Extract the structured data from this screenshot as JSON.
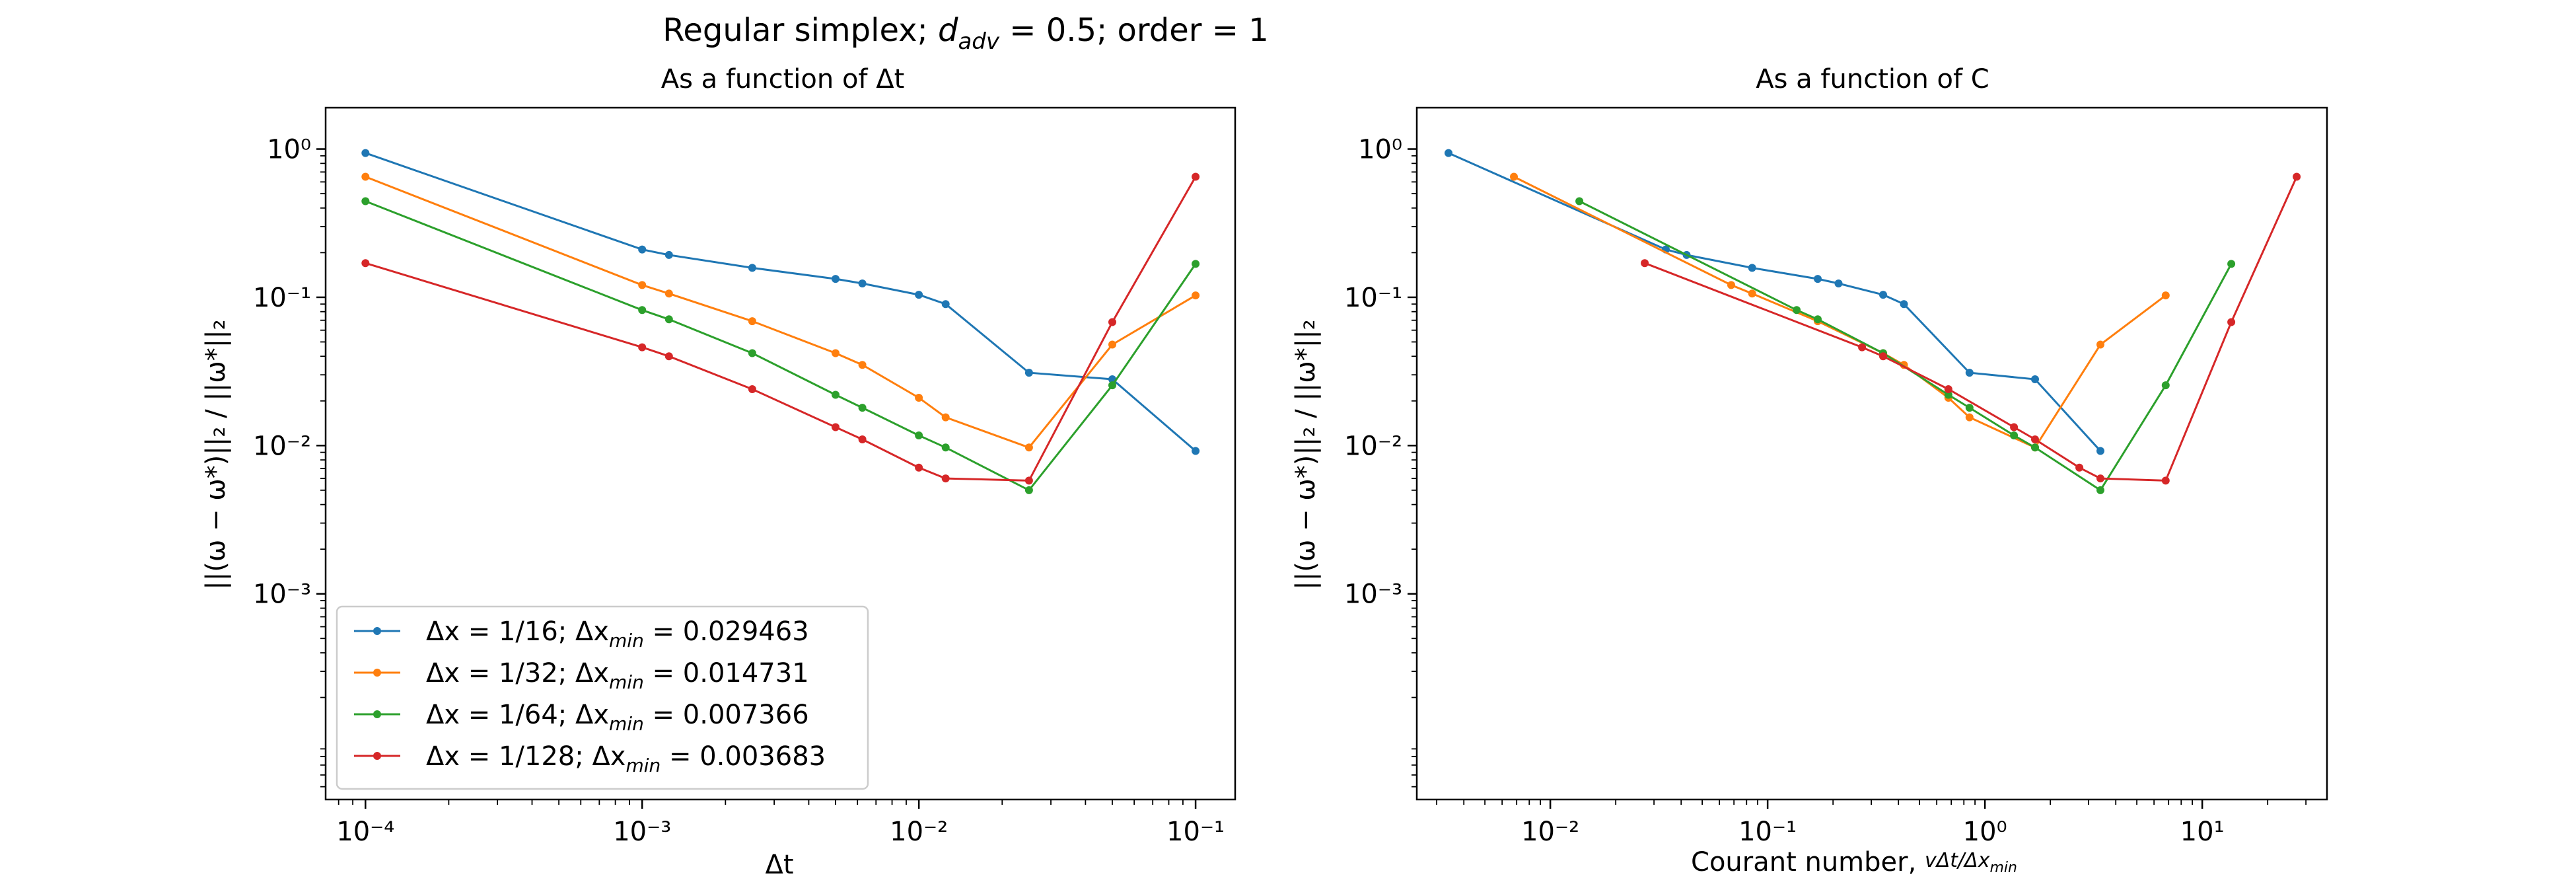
{
  "figure_title": {
    "prefix": "Regular simplex; ",
    "d_symbol": "d",
    "d_subscript": "adv",
    "d_value": " = 0.5; order = 1"
  },
  "legend_entries": [
    {
      "dx": "Δx = 1/16; Δx",
      "sub": "min",
      "rest": " = 0.029463"
    },
    {
      "dx": "Δx = 1/32; Δx",
      "sub": "min",
      "rest": " = 0.014731"
    },
    {
      "dx": "Δx = 1/64; Δx",
      "sub": "min",
      "rest": " = 0.007366"
    },
    {
      "dx": "Δx = 1/128; Δx",
      "sub": "min",
      "rest": " = 0.003683"
    }
  ],
  "chart_data": [
    {
      "type": "line",
      "title": "As a function of Δt",
      "xlabel": "Δt",
      "ylabel": "||(ω − ω*)||₂ / ||ω*||₂",
      "xscale": "log",
      "yscale": "log",
      "xlim": [
        7.18e-05,
        0.139
      ],
      "ylim": [
        4.1e-05,
        1.9
      ],
      "x_ticks": [
        {
          "value": 0.0001,
          "label": "10⁻⁴"
        },
        {
          "value": 0.001,
          "label": "10⁻³"
        },
        {
          "value": 0.01,
          "label": "10⁻²"
        },
        {
          "value": 0.1,
          "label": "10⁻¹"
        }
      ],
      "y_ticks": [
        {
          "value": 0.001,
          "label": "10⁻³"
        },
        {
          "value": 0.01,
          "label": "10⁻²"
        },
        {
          "value": 0.1,
          "label": "10⁻¹"
        },
        {
          "value": 1,
          "label": "10⁰"
        }
      ],
      "legend_position": "lower-left",
      "grid": false,
      "series": [
        {
          "name": "Δx = 1/16; Δx_min = 0.029463",
          "color": "#1f77b4",
          "x": [
            0.0001,
            0.001,
            0.00125,
            0.0025,
            0.005,
            0.00625,
            0.01,
            0.0125,
            0.025,
            0.05,
            0.1
          ],
          "y": [
            0.94,
            0.21,
            0.193,
            0.158,
            0.133,
            0.124,
            0.104,
            0.09,
            0.031,
            0.028,
            0.0092
          ]
        },
        {
          "name": "Δx = 1/32; Δx_min = 0.014731",
          "color": "#ff7f0e",
          "x": [
            0.0001,
            0.001,
            0.00125,
            0.0025,
            0.005,
            0.00625,
            0.01,
            0.0125,
            0.025,
            0.05,
            0.1
          ],
          "y": [
            0.65,
            0.121,
            0.106,
            0.069,
            0.042,
            0.035,
            0.021,
            0.0155,
            0.0097,
            0.048,
            0.103
          ]
        },
        {
          "name": "Δx = 1/64; Δx_min = 0.007366",
          "color": "#2ca02c",
          "x": [
            0.0001,
            0.001,
            0.00125,
            0.0025,
            0.005,
            0.00625,
            0.01,
            0.0125,
            0.025,
            0.05,
            0.1
          ],
          "y": [
            0.445,
            0.082,
            0.071,
            0.042,
            0.022,
            0.018,
            0.0117,
            0.0097,
            0.005,
            0.0255,
            0.168
          ]
        },
        {
          "name": "Δx = 1/128; Δx_min = 0.003683",
          "color": "#d62728",
          "x": [
            0.0001,
            0.001,
            0.00125,
            0.0025,
            0.005,
            0.00625,
            0.01,
            0.0125,
            0.025,
            0.05,
            0.1
          ],
          "y": [
            0.17,
            0.046,
            0.04,
            0.024,
            0.0133,
            0.011,
            0.0071,
            0.006,
            0.0058,
            0.068,
            0.65
          ]
        }
      ]
    },
    {
      "type": "line",
      "title": "As a function of C",
      "xlabel": "Courant number, vΔt/Δx_min",
      "ylabel": "||(ω − ω*)||₂ / ||ω*||₂",
      "xscale": "log",
      "yscale": "log",
      "xlim": [
        0.00243,
        37.5
      ],
      "ylim": [
        4.1e-05,
        1.9
      ],
      "x_ticks": [
        {
          "value": 0.01,
          "label": "10⁻²"
        },
        {
          "value": 0.1,
          "label": "10⁻¹"
        },
        {
          "value": 1,
          "label": "10⁰"
        },
        {
          "value": 10,
          "label": "10¹"
        }
      ],
      "y_ticks": [
        {
          "value": 0.001,
          "label": "10⁻³"
        },
        {
          "value": 0.01,
          "label": "10⁻²"
        },
        {
          "value": 0.1,
          "label": "10⁻¹"
        },
        {
          "value": 1,
          "label": "10⁰"
        }
      ],
      "grid": false,
      "series": [
        {
          "name": "Δx = 1/16; Δx_min = 0.029463",
          "color": "#1f77b4",
          "x": [
            0.0034,
            0.034,
            0.0424,
            0.0849,
            0.17,
            0.212,
            0.34,
            0.424,
            0.849,
            1.7,
            3.4
          ],
          "y": [
            0.94,
            0.21,
            0.193,
            0.158,
            0.133,
            0.124,
            0.104,
            0.09,
            0.031,
            0.028,
            0.0092
          ]
        },
        {
          "name": "Δx = 1/32; Δx_min = 0.014731",
          "color": "#ff7f0e",
          "x": [
            0.0068,
            0.068,
            0.0849,
            0.17,
            0.34,
            0.424,
            0.679,
            0.849,
            1.7,
            3.4,
            6.79
          ],
          "y": [
            0.65,
            0.121,
            0.106,
            0.069,
            0.042,
            0.035,
            0.021,
            0.0155,
            0.0097,
            0.048,
            0.103
          ]
        },
        {
          "name": "Δx = 1/64; Δx_min = 0.007366",
          "color": "#2ca02c",
          "x": [
            0.0136,
            0.136,
            0.17,
            0.34,
            0.679,
            0.849,
            1.36,
            1.7,
            3.4,
            6.79,
            13.6
          ],
          "y": [
            0.445,
            0.082,
            0.071,
            0.042,
            0.022,
            0.018,
            0.0117,
            0.0097,
            0.005,
            0.0255,
            0.168
          ]
        },
        {
          "name": "Δx = 1/128; Δx_min = 0.003683",
          "color": "#d62728",
          "x": [
            0.0272,
            0.272,
            0.34,
            0.679,
            1.36,
            1.7,
            2.72,
            3.4,
            6.79,
            13.6,
            27.2
          ],
          "y": [
            0.17,
            0.046,
            0.04,
            0.024,
            0.0133,
            0.011,
            0.0071,
            0.006,
            0.0058,
            0.068,
            0.65
          ]
        }
      ]
    }
  ]
}
